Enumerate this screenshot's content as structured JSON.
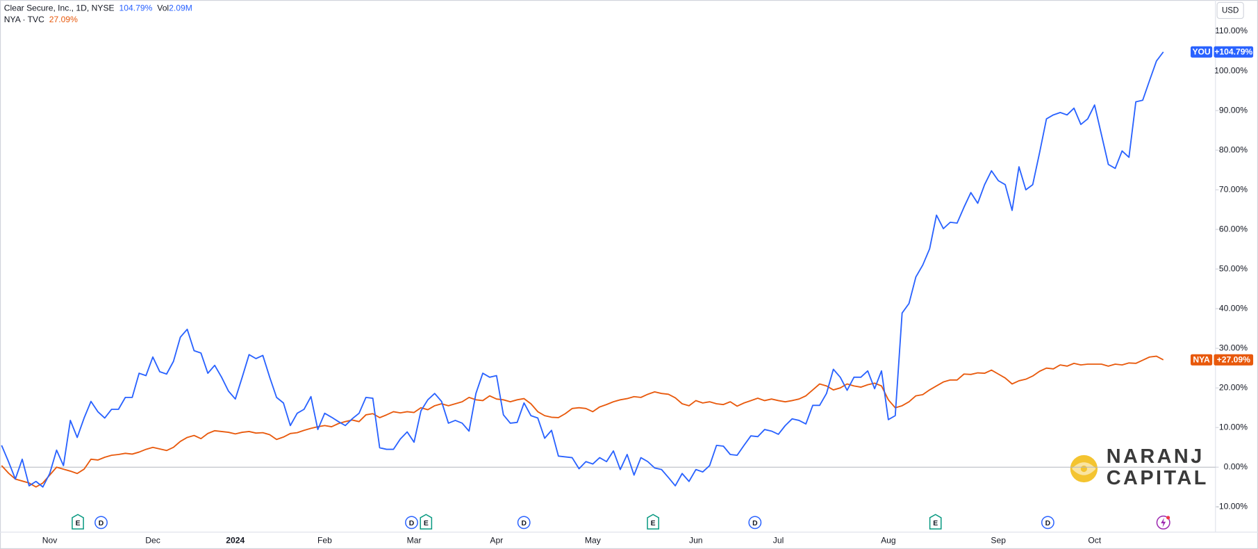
{
  "chart_data": {
    "type": "line",
    "currency": "USD",
    "watermark": [
      "NARANJ",
      "CAPITAL"
    ],
    "events": [
      "E",
      "D",
      "D",
      "E",
      "D",
      "E",
      "D",
      "E",
      "D"
    ],
    "categories": [
      null,
      null,
      null,
      null,
      null,
      null,
      null,
      "Nov",
      null,
      null,
      null,
      null,
      null,
      null,
      null,
      null,
      null,
      null,
      null,
      null,
      null,
      null,
      "Dec",
      null,
      null,
      null,
      null,
      null,
      null,
      null,
      null,
      null,
      null,
      null,
      "2024",
      null,
      null,
      null,
      null,
      null,
      null,
      null,
      null,
      null,
      null,
      null,
      null,
      "Feb",
      null,
      null,
      null,
      null,
      null,
      null,
      null,
      null,
      null,
      null,
      null,
      null,
      "Mar",
      null,
      null,
      null,
      null,
      null,
      null,
      null,
      null,
      null,
      null,
      null,
      "Apr",
      null,
      null,
      null,
      null,
      null,
      null,
      null,
      null,
      null,
      null,
      null,
      null,
      null,
      "May",
      null,
      null,
      null,
      null,
      null,
      null,
      null,
      null,
      null,
      null,
      null,
      null,
      null,
      null,
      "Jun",
      null,
      null,
      null,
      null,
      null,
      null,
      null,
      null,
      null,
      null,
      null,
      "Jul",
      null,
      null,
      null,
      null,
      null,
      null,
      null,
      null,
      null,
      null,
      null,
      null,
      null,
      null,
      null,
      "Aug",
      null,
      null,
      null,
      null,
      null,
      null,
      null,
      null,
      null,
      null,
      null,
      null,
      null,
      null,
      null,
      "Sep",
      null,
      null,
      null,
      null,
      null,
      null,
      null,
      null,
      null,
      null,
      null,
      null,
      null,
      "Oct",
      null,
      null,
      null,
      null,
      null,
      null,
      null,
      null,
      null,
      null
    ],
    "series": [
      {
        "name": "Clear Secure, Inc., 1D, NYSE",
        "ticker": "YOU",
        "change_label": "104.79%",
        "last_label": "+104.79%",
        "volume_title": "Vol",
        "volume": "2.09M",
        "color": "#2962ff",
        "values": [
          5.5,
          1.4,
          -3,
          2,
          -4.7,
          -3.6,
          -5,
          -1.6,
          4.3,
          0.4,
          11.8,
          7.5,
          12.4,
          16.6,
          14,
          12.4,
          14.6,
          14.6,
          17.6,
          17.6,
          23.7,
          23.1,
          27.8,
          24.1,
          23.5,
          26.7,
          32.8,
          34.8,
          29.4,
          28.8,
          23.7,
          25.7,
          22.7,
          19.2,
          17.2,
          22.7,
          28.4,
          27.4,
          28.2,
          22.7,
          17.6,
          16.2,
          10.5,
          13.6,
          14.6,
          17.8,
          9.5,
          13.6,
          12.6,
          11.5,
          10.5,
          12.2,
          13.6,
          17.6,
          17.4,
          4.9,
          4.5,
          4.5,
          7.1,
          8.9,
          6.3,
          14.2,
          17,
          18.6,
          16.6,
          11.1,
          11.8,
          11.1,
          9.1,
          18.6,
          23.7,
          22.7,
          23.1,
          13.2,
          11.1,
          11.3,
          16.2,
          13,
          12.4,
          7.3,
          9.3,
          2.8,
          2.6,
          2.4,
          -0.4,
          1.4,
          0.8,
          2.4,
          1.4,
          4.1,
          -0.6,
          3.2,
          -2,
          2.4,
          1.4,
          -0.2,
          -0.6,
          -2.6,
          -4.7,
          -1.6,
          -3.6,
          -0.6,
          -1.2,
          0.4,
          5.5,
          5.3,
          3.2,
          3,
          5.5,
          7.9,
          7.7,
          9.5,
          9.1,
          8.3,
          10.5,
          12.2,
          11.8,
          10.9,
          15.6,
          15.6,
          18.6,
          24.7,
          22.7,
          19.4,
          22.7,
          22.7,
          24.3,
          19.8,
          24.3,
          12,
          13,
          38.9,
          41.3,
          48,
          51,
          55.1,
          63.6,
          60.2,
          61.8,
          61.6,
          65.6,
          69.3,
          66.6,
          71.3,
          74.8,
          72.3,
          71.3,
          64.8,
          75.8,
          70,
          71.3,
          79.4,
          87.9,
          88.9,
          89.5,
          88.9,
          90.6,
          86.5,
          87.9,
          91.4,
          83.9,
          76.4,
          75.4,
          79.8,
          78.2,
          92.2,
          92.6,
          97.6,
          102.5,
          104.79
        ]
      },
      {
        "name": "NYA · TVC",
        "ticker": "NYA",
        "change_label": "27.09%",
        "last_label": "+27.09%",
        "color": "#e8590c",
        "values": [
          0.4,
          -1.5,
          -3,
          -3.5,
          -4,
          -5,
          -4,
          -2,
          0,
          -0.5,
          -1,
          -1.6,
          -0.5,
          2,
          1.8,
          2.5,
          3,
          3.2,
          3.5,
          3.3,
          3.8,
          4.5,
          5,
          4.6,
          4.2,
          5,
          6.5,
          7.5,
          8,
          7.2,
          8.5,
          9.2,
          9,
          8.8,
          8.4,
          8.8,
          9,
          8.6,
          8.7,
          8.2,
          7,
          7.6,
          8.5,
          8.7,
          9.3,
          9.8,
          10.2,
          10.5,
          10.2,
          11,
          11.5,
          11.9,
          11.5,
          13.2,
          13.5,
          12.5,
          13.2,
          14,
          13.7,
          14,
          13.8,
          15,
          14.5,
          15.5,
          16,
          15.5,
          16,
          16.5,
          17.6,
          17,
          16.8,
          18,
          17.2,
          17,
          16.5,
          17,
          17.3,
          16,
          14,
          13,
          12.6,
          12.5,
          13.5,
          14.8,
          15,
          14.8,
          14,
          15.2,
          15.8,
          16.5,
          17,
          17.3,
          17.8,
          17.6,
          18.4,
          19,
          18.6,
          18.4,
          17.5,
          16,
          15.5,
          16.8,
          16.2,
          16.5,
          16,
          15.8,
          16.5,
          15.4,
          16.2,
          16.8,
          17.4,
          16.8,
          17.2,
          16.8,
          16.5,
          16.8,
          17.2,
          18,
          19.5,
          21,
          20.5,
          19.5,
          20,
          21,
          20.5,
          20.2,
          20.8,
          21.2,
          20.5,
          17,
          15,
          15.5,
          16.5,
          18,
          18.3,
          19.5,
          20.5,
          21.5,
          22,
          22,
          23.5,
          23.4,
          23.8,
          23.7,
          24.5,
          23.5,
          22.5,
          21,
          21.8,
          22.2,
          23,
          24.2,
          25,
          24.8,
          25.8,
          25.5,
          26.2,
          25.8,
          26,
          26,
          26,
          25.5,
          26,
          25.8,
          26.3,
          26.2,
          27,
          27.8,
          28,
          27.09
        ]
      }
    ],
    "ylim": [
      -16.4,
      117.9
    ],
    "yticks": [
      {
        "value": -10,
        "label": "-10.00%"
      },
      {
        "value": 0,
        "label": "0.00%"
      },
      {
        "value": 10,
        "label": "10.00%"
      },
      {
        "value": 20,
        "label": "20.00%"
      },
      {
        "value": 30,
        "label": "30.00%"
      },
      {
        "value": 40,
        "label": "40.00%"
      },
      {
        "value": 50,
        "label": "50.00%"
      },
      {
        "value": 60,
        "label": "60.00%"
      },
      {
        "value": 70,
        "label": "70.00%"
      },
      {
        "value": 80,
        "label": "80.00%"
      },
      {
        "value": 90,
        "label": "90.00%"
      },
      {
        "value": 100,
        "label": "100.00%"
      },
      {
        "value": 110,
        "label": "110.00%"
      }
    ]
  }
}
